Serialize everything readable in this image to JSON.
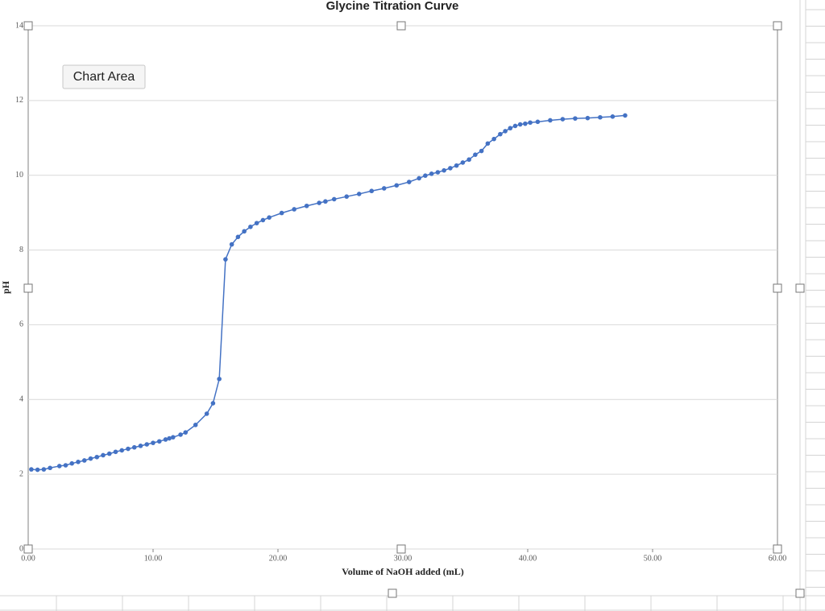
{
  "chart_data": {
    "type": "scatter",
    "title": "Glycine Titration Curve",
    "x_label": "Volume of NaOH added (mL)",
    "y_label": "pH",
    "tooltip": "Chart Area",
    "color": "#4472c4",
    "line": true,
    "grid": true,
    "x": [
      0.25,
      0.75,
      1.25,
      1.75,
      2.5,
      3.0,
      3.5,
      4.0,
      4.5,
      5.0,
      5.5,
      6.0,
      6.5,
      7.0,
      7.5,
      8.0,
      8.5,
      9.0,
      9.5,
      10.0,
      10.5,
      11.0,
      11.3,
      11.6,
      12.2,
      12.6,
      13.4,
      14.3,
      14.8,
      15.3,
      15.8,
      16.3,
      16.8,
      17.3,
      17.8,
      18.3,
      18.8,
      19.3,
      20.3,
      21.3,
      22.3,
      23.3,
      23.8,
      24.5,
      25.5,
      26.5,
      27.5,
      28.5,
      29.5,
      30.5,
      31.3,
      31.8,
      32.3,
      32.8,
      33.3,
      33.8,
      34.3,
      34.8,
      35.3,
      35.8,
      36.3,
      36.8,
      37.3,
      37.8,
      38.2,
      38.6,
      39.0,
      39.4,
      39.8,
      40.2,
      40.8,
      41.8,
      42.8,
      43.8,
      44.8,
      45.8,
      46.8,
      47.8
    ],
    "values": [
      2.13,
      2.12,
      2.13,
      2.17,
      2.22,
      2.24,
      2.29,
      2.33,
      2.37,
      2.42,
      2.46,
      2.51,
      2.55,
      2.6,
      2.64,
      2.68,
      2.72,
      2.76,
      2.8,
      2.84,
      2.88,
      2.93,
      2.96,
      2.99,
      3.06,
      3.12,
      3.32,
      3.62,
      3.9,
      4.55,
      7.75,
      8.15,
      8.35,
      8.5,
      8.62,
      8.72,
      8.8,
      8.87,
      8.99,
      9.09,
      9.18,
      9.26,
      9.3,
      9.36,
      9.43,
      9.5,
      9.58,
      9.65,
      9.73,
      9.82,
      9.92,
      9.99,
      10.04,
      10.08,
      10.13,
      10.19,
      10.26,
      10.34,
      10.42,
      10.55,
      10.65,
      10.85,
      10.97,
      11.1,
      11.18,
      11.26,
      11.32,
      11.36,
      11.38,
      11.41,
      11.43,
      11.47,
      11.5,
      11.52,
      11.53,
      11.55,
      11.57,
      11.6
    ],
    "xlim": [
      0,
      60
    ],
    "xticks": [
      {
        "value": 0,
        "label": "0.00"
      },
      {
        "value": 10,
        "label": "10.00"
      },
      {
        "value": 20,
        "label": "20.00"
      },
      {
        "value": 30,
        "label": "30.00"
      },
      {
        "value": 40,
        "label": "40.00"
      },
      {
        "value": 50,
        "label": "50.00"
      },
      {
        "value": 60,
        "label": "60.00"
      }
    ],
    "ylim": [
      0,
      14
    ],
    "yticks": [
      0,
      2,
      4,
      6,
      8,
      10,
      12,
      14
    ]
  }
}
